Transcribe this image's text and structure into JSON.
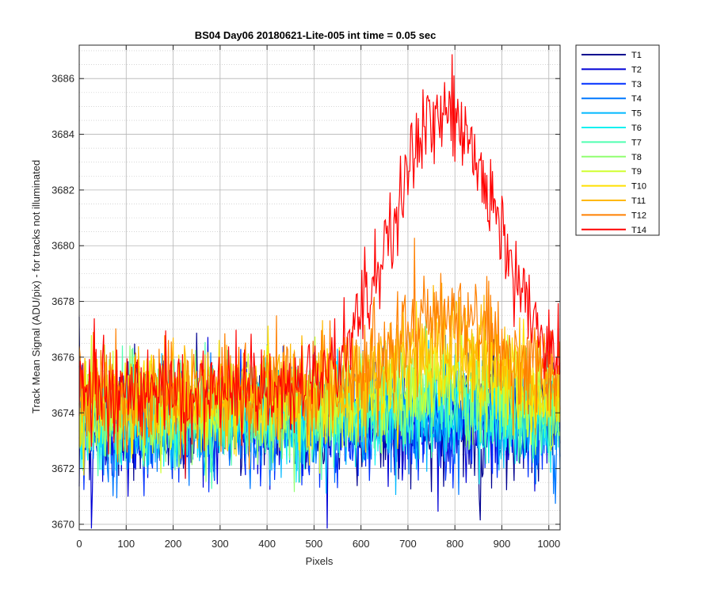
{
  "chart_data": {
    "type": "line",
    "title": "BS04 Day06 20180621-Lite-005 int time = 0.05 sec",
    "xlabel": "Pixels",
    "ylabel": "Track Mean Signal (ADU/pix) - for tracks not illuminated",
    "xlim": [
      0,
      1024
    ],
    "ylim": [
      3669.8,
      3687.2
    ],
    "xticks": [
      0,
      100,
      200,
      300,
      400,
      500,
      600,
      700,
      800,
      900,
      1000
    ],
    "yticks": [
      3670,
      3672,
      3674,
      3676,
      3678,
      3680,
      3682,
      3684,
      3686
    ],
    "grid": "on",
    "minor_grid": "y",
    "legend_position": "outside-top-right",
    "noise_seed": 7,
    "series": [
      {
        "name": "T1",
        "color": "#00008f",
        "base": 3673.6,
        "noise": 1.1,
        "rise": 0.0,
        "rise_center": 780,
        "rise_width": 170
      },
      {
        "name": "T2",
        "color": "#0000d6",
        "base": 3673.6,
        "noise": 1.1,
        "rise": 0.0,
        "rise_center": 780,
        "rise_width": 170
      },
      {
        "name": "T3",
        "color": "#0030ff",
        "base": 3673.6,
        "noise": 1.1,
        "rise": 0.1,
        "rise_center": 780,
        "rise_width": 170
      },
      {
        "name": "T4",
        "color": "#0078ff",
        "base": 3673.6,
        "noise": 1.1,
        "rise": 0.2,
        "rise_center": 780,
        "rise_width": 170
      },
      {
        "name": "T5",
        "color": "#00b8ff",
        "base": 3673.7,
        "noise": 1.0,
        "rise": 0.3,
        "rise_center": 780,
        "rise_width": 170
      },
      {
        "name": "T6",
        "color": "#10f0f0",
        "base": 3673.8,
        "noise": 1.0,
        "rise": 0.4,
        "rise_center": 780,
        "rise_width": 170
      },
      {
        "name": "T7",
        "color": "#50ffb0",
        "base": 3673.9,
        "noise": 1.0,
        "rise": 0.6,
        "rise_center": 780,
        "rise_width": 170
      },
      {
        "name": "T8",
        "color": "#90ff70",
        "base": 3674.0,
        "noise": 1.0,
        "rise": 0.8,
        "rise_center": 780,
        "rise_width": 170
      },
      {
        "name": "T9",
        "color": "#d0ff30",
        "base": 3674.2,
        "noise": 1.0,
        "rise": 1.0,
        "rise_center": 780,
        "rise_width": 170
      },
      {
        "name": "T10",
        "color": "#ffe000",
        "base": 3674.4,
        "noise": 1.0,
        "rise": 1.4,
        "rise_center": 780,
        "rise_width": 170
      },
      {
        "name": "T11",
        "color": "#ffb800",
        "base": 3674.6,
        "noise": 1.0,
        "rise": 1.9,
        "rise_center": 780,
        "rise_width": 170
      },
      {
        "name": "T12",
        "color": "#ff8000",
        "base": 3674.8,
        "noise": 1.0,
        "rise": 2.8,
        "rise_center": 780,
        "rise_width": 170
      },
      {
        "name": "T14",
        "color": "#ff0000",
        "base": 3674.8,
        "noise": 1.0,
        "rise": 10.0,
        "rise_center": 780,
        "rise_width": 160
      }
    ]
  }
}
